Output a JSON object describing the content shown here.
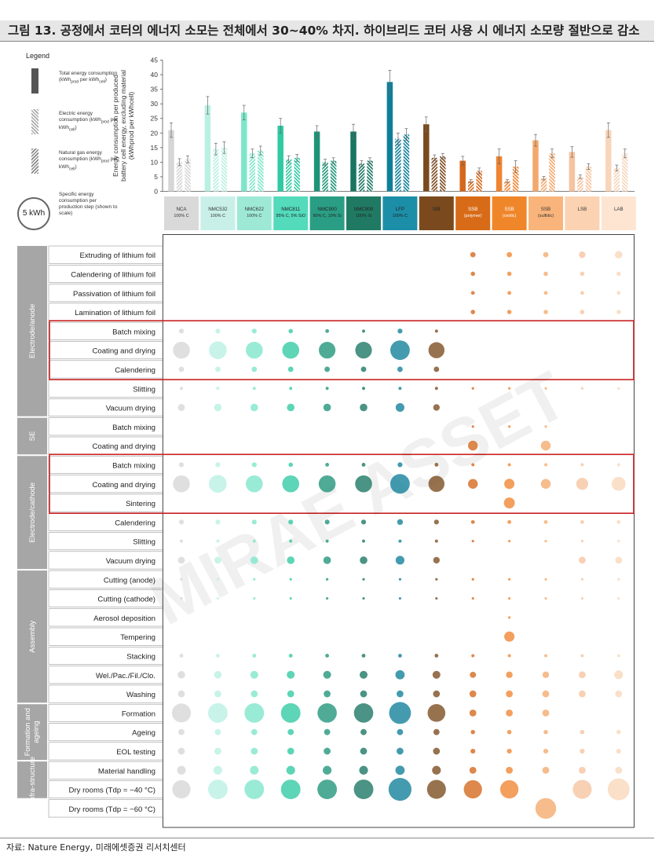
{
  "page": {
    "title": "그림 13. 공정에서 코터의 에너지 소모는 전체에서 30~40% 차지. 하이브리드 코터 사용 시 에너지 소모량 절반으로 감소",
    "source": "자료: Nature Energy, 미래에셋증권 리서치센터",
    "watermark": "MIRAE ASSET"
  },
  "legend": {
    "title": "Legend",
    "items": [
      {
        "label": "Total energy consumption (kWh",
        "sub": "prod",
        "rest": " per kWh",
        "sub2": "cell",
        "end": ")"
      },
      {
        "label": "Electric energy consumption (kWh",
        "sub": "prod",
        "rest": " per kWh",
        "sub2": "cell",
        "end": ")"
      },
      {
        "label": "Natural gas energy consumption (kWh",
        "sub": "prod",
        "rest": " per kWh",
        "sub2": "cell",
        "end": ")"
      }
    ],
    "circle_label": "5 kWh",
    "circle_text": "Specific energy consumption per production step (shown to scale)"
  },
  "chart_data": {
    "type": "bar",
    "ylabel": "Energy consumption per produced battery cell energy, excluding material (kWhprod per kWhcell)",
    "ylim": [
      0,
      45
    ],
    "yticks": [
      0,
      5,
      10,
      15,
      20,
      25,
      30,
      35,
      40,
      45
    ],
    "categories": [
      {
        "name": "NCA",
        "sub": "100% C",
        "color": "#d9d9d9",
        "text_color": "#333333"
      },
      {
        "name": "NMC532",
        "sub": "100% C",
        "color": "#c8f0e8",
        "text_color": "#333333"
      },
      {
        "name": "NMC622",
        "sub": "100% C",
        "color": "#9ee9d6",
        "text_color": "#333333"
      },
      {
        "name": "NMC811",
        "sub": "95% C, 5% SiO",
        "color": "#53dbbc",
        "text_color": "#222222"
      },
      {
        "name": "NMC900",
        "sub": "90% C, 10% Si",
        "color": "#2a9e84",
        "text_color": "#222222"
      },
      {
        "name": "NMC900",
        "sub": "100% Si",
        "color": "#207a63",
        "text_color": "#222222"
      },
      {
        "name": "LFP",
        "sub": "100% C",
        "color": "#1d8ea8",
        "text_color": "#222222"
      },
      {
        "name": "SIB",
        "sub": "",
        "color": "#7a4a1e",
        "text_color": "#222222"
      },
      {
        "name": "SSB",
        "sub": "(polymer)",
        "color": "#d86b17",
        "text_color": "#ffffff"
      },
      {
        "name": "SSB",
        "sub": "(oxidic)",
        "color": "#f0862a",
        "text_color": "#ffffff"
      },
      {
        "name": "SSB",
        "sub": "(sulfidic)",
        "color": "#f8b47a",
        "text_color": "#333333"
      },
      {
        "name": "LSB",
        "sub": "",
        "color": "#fbd3b2",
        "text_color": "#333333"
      },
      {
        "name": "LAB",
        "sub": "",
        "color": "#fde5d2",
        "text_color": "#333333"
      }
    ],
    "bar_colors": [
      "#d6d6d6",
      "#b9f0e2",
      "#7de6ca",
      "#2fc9a2",
      "#1e9479",
      "#187562",
      "#0f7f99",
      "#7a4a1e",
      "#d4671a",
      "#ef8431",
      "#f3a96c",
      "#f6c39f",
      "#f8d6ba"
    ],
    "series": [
      {
        "name": "Total",
        "values": [
          21,
          29.5,
          27,
          22.5,
          20.5,
          20.5,
          37.5,
          23,
          10.5,
          12,
          17.5,
          13.5,
          21
        ]
      },
      {
        "name": "Electric",
        "values": [
          10,
          14.5,
          13,
          11,
          10,
          9.5,
          18,
          11.5,
          3.5,
          3.5,
          4.5,
          5,
          8
        ]
      },
      {
        "name": "Natural gas",
        "values": [
          11,
          15,
          14,
          11.5,
          10.5,
          10.5,
          19.5,
          12,
          7,
          8.5,
          13,
          8.5,
          13
        ]
      }
    ],
    "errors": [
      [
        2.5,
        1.2,
        1.2
      ],
      [
        3,
        2,
        2
      ],
      [
        2.5,
        1.5,
        1.5
      ],
      [
        2.5,
        1.2,
        1.2
      ],
      [
        2,
        1,
        1
      ],
      [
        2.5,
        1,
        1
      ],
      [
        4,
        2,
        2
      ],
      [
        2.5,
        1,
        1
      ],
      [
        1.5,
        0.5,
        1
      ],
      [
        2.5,
        0.5,
        2
      ],
      [
        2,
        0.6,
        1.5
      ],
      [
        1.8,
        0.6,
        1
      ],
      [
        2.5,
        1,
        1.5
      ]
    ],
    "bubble_sections": [
      {
        "name": "Electrode/anode",
        "start": 0,
        "end": 9
      },
      {
        "name": "SE",
        "start": 9,
        "end": 11
      },
      {
        "name": "Electrode/cathode",
        "start": 11,
        "end": 17
      },
      {
        "name": "Assembly",
        "start": 17,
        "end": 24
      },
      {
        "name": "Formation and ageing",
        "start": 24,
        "end": 27
      },
      {
        "name": "Infra-structure",
        "start": 27,
        "end": 29
      }
    ],
    "highlight_groups": [
      [
        4,
        6
      ],
      [
        11,
        13
      ]
    ],
    "bubble_rows": [
      {
        "label": "Extruding of lithium foil",
        "v": [
          0,
          0,
          0,
          0,
          0,
          0,
          0,
          0,
          0.6,
          0.6,
          0.6,
          0.9,
          1.2
        ]
      },
      {
        "label": "Calendering of lithium foil",
        "v": [
          0,
          0,
          0,
          0,
          0,
          0,
          0,
          0,
          0.4,
          0.4,
          0.4,
          0.4,
          0.4
        ]
      },
      {
        "label": "Passivation of lithium foil",
        "v": [
          0,
          0,
          0,
          0,
          0,
          0,
          0,
          0,
          0.3,
          0.3,
          0.3,
          0.3,
          0.3
        ]
      },
      {
        "label": "Lamination of lithium foil",
        "v": [
          0,
          0,
          0,
          0,
          0,
          0,
          0,
          0,
          0.4,
          0.4,
          0.4,
          0.4,
          0.4
        ]
      },
      {
        "label": "Batch mixing",
        "v": [
          0.5,
          0.5,
          0.5,
          0.4,
          0.3,
          0.2,
          0.5,
          0.2,
          0,
          0,
          0,
          0,
          0
        ]
      },
      {
        "label": "Coating and drying",
        "v": [
          6,
          6.6,
          6,
          6,
          5.8,
          5.8,
          8,
          5.4,
          0,
          0,
          0,
          0,
          0
        ]
      },
      {
        "label": "Calendering",
        "v": [
          0.6,
          0.6,
          0.6,
          0.6,
          0.6,
          0.6,
          0.6,
          0.6,
          0,
          0,
          0,
          0,
          0
        ]
      },
      {
        "label": "Slitting",
        "v": [
          0.2,
          0.2,
          0.2,
          0.2,
          0.2,
          0.2,
          0.2,
          0.2,
          0.1,
          0.1,
          0.1,
          0.1,
          0.1
        ]
      },
      {
        "label": "Vacuum drying",
        "v": [
          1,
          1.2,
          1.2,
          1.2,
          1.2,
          1.2,
          1.6,
          0.9,
          0,
          0,
          0,
          0,
          0
        ]
      },
      {
        "label": "Batch mixing",
        "v": [
          0,
          0,
          0,
          0,
          0,
          0,
          0,
          0,
          0.1,
          0.1,
          0.1,
          0,
          0
        ]
      },
      {
        "label": "Coating and drying",
        "v": [
          0,
          0,
          0,
          0,
          0,
          0,
          0,
          0,
          2,
          0,
          2,
          0,
          0
        ]
      },
      {
        "label": "Batch mixing",
        "v": [
          0.5,
          0.5,
          0.5,
          0.4,
          0.3,
          0.3,
          0.5,
          0.3,
          0.2,
          0.2,
          0.2,
          0.2,
          0.2
        ]
      },
      {
        "label": "Coating and drying",
        "v": [
          6,
          6.6,
          6,
          6,
          6,
          6,
          8,
          5.4,
          2,
          2.2,
          2,
          3,
          4
        ]
      },
      {
        "label": "Sintering",
        "v": [
          0,
          0,
          0,
          0,
          0,
          0,
          0,
          0,
          0,
          2.5,
          0,
          0,
          0
        ]
      },
      {
        "label": "Calendering",
        "v": [
          0.5,
          0.5,
          0.5,
          0.5,
          0.5,
          0.5,
          0.7,
          0.5,
          0.3,
          0.3,
          0.3,
          0.3,
          0.3
        ]
      },
      {
        "label": "Slitting",
        "v": [
          0.2,
          0.2,
          0.2,
          0.2,
          0.2,
          0.2,
          0.2,
          0.2,
          0.1,
          0.1,
          0.1,
          0.1,
          0.1
        ]
      },
      {
        "label": "Vacuum drying",
        "v": [
          1,
          1,
          1.2,
          1.2,
          1.2,
          1.2,
          1.6,
          0.9,
          0,
          0,
          0,
          1,
          1
        ]
      },
      {
        "label": "Cutting (anode)",
        "v": [
          0.1,
          0.1,
          0.1,
          0.1,
          0.1,
          0.1,
          0.1,
          0.1,
          0.05,
          0.05,
          0.05,
          0.05,
          0.05
        ]
      },
      {
        "label": "Cutting (cathode)",
        "v": [
          0.1,
          0.1,
          0.1,
          0.1,
          0.1,
          0.1,
          0.1,
          0.1,
          0.1,
          0.1,
          0.1,
          0.1,
          0.1
        ]
      },
      {
        "label": "Aerosol deposition",
        "v": [
          0,
          0,
          0,
          0,
          0,
          0,
          0,
          0,
          0,
          0.1,
          0,
          0,
          0
        ]
      },
      {
        "label": "Tempering",
        "v": [
          0,
          0,
          0,
          0,
          0,
          0,
          0,
          0,
          0,
          2.2,
          0,
          0,
          0
        ]
      },
      {
        "label": "Stacking",
        "v": [
          0.3,
          0.3,
          0.3,
          0.3,
          0.3,
          0.3,
          0.3,
          0.3,
          0.2,
          0.2,
          0.2,
          0.2,
          0.2
        ]
      },
      {
        "label": "Wel./Pac./Fil./Clo.",
        "v": [
          1.2,
          1.2,
          1.3,
          1.3,
          1.3,
          1.3,
          1.8,
          1.3,
          0.8,
          0.9,
          0.9,
          1,
          1.6
        ]
      },
      {
        "label": "Washing",
        "v": [
          1,
          1,
          1,
          1,
          1,
          1,
          1,
          1,
          1,
          1,
          1,
          1,
          1
        ]
      },
      {
        "label": "Formation",
        "v": [
          7.5,
          8,
          8,
          8,
          7.8,
          7.8,
          10,
          6.6,
          1,
          1,
          1,
          0,
          0
        ]
      },
      {
        "label": "Ageing",
        "v": [
          0.8,
          0.8,
          0.8,
          0.8,
          0.8,
          0.8,
          0.8,
          0.8,
          0.4,
          0.4,
          0.4,
          0.4,
          0.4
        ]
      },
      {
        "label": "EOL testing",
        "v": [
          1,
          1,
          1,
          1,
          1,
          1,
          1,
          1,
          0.5,
          0.5,
          0.5,
          0.5,
          0.5
        ]
      },
      {
        "label": "Material handling",
        "v": [
          1.6,
          1.6,
          1.6,
          1.6,
          1.6,
          1.6,
          1.8,
          1.6,
          1,
          1,
          1,
          1,
          1
        ]
      },
      {
        "label": "Dry rooms (Tdp = −40 °C)",
        "v": [
          7,
          8,
          8,
          8,
          8,
          8,
          11,
          7.5,
          7,
          7,
          0,
          7.5,
          10
        ]
      },
      {
        "label": "Dry rooms (Tdp = −60 °C)",
        "v": [
          0,
          0,
          0,
          0,
          0,
          0,
          0,
          0,
          0,
          0,
          9,
          0,
          0
        ]
      }
    ]
  }
}
